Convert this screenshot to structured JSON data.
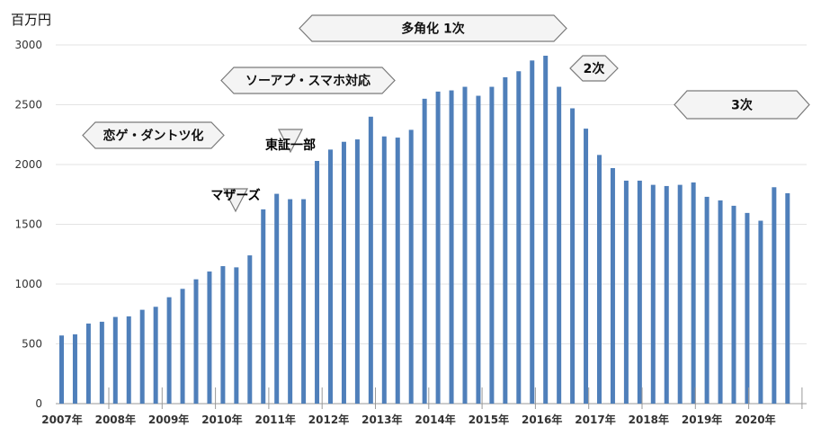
{
  "chart_data": {
    "type": "bar",
    "ylabel": "百万円",
    "ylim": [
      0,
      3000
    ],
    "yticks": [
      0,
      500,
      1000,
      1500,
      2000,
      2500,
      3000
    ],
    "grid": true,
    "bar_color": "#4f7fba",
    "year_labels": [
      "2007年",
      "2008年",
      "2009年",
      "2010年",
      "2011年",
      "2012年",
      "2013年",
      "2014年",
      "2015年",
      "2016年",
      "2017年",
      "2018年",
      "2019年",
      "2020年"
    ],
    "values": [
      570,
      580,
      670,
      685,
      725,
      730,
      785,
      810,
      890,
      960,
      1040,
      1105,
      1150,
      1140,
      1240,
      1625,
      1755,
      1710,
      1710,
      2030,
      2125,
      2190,
      2210,
      2400,
      2235,
      2225,
      2290,
      2550,
      2610,
      2620,
      2650,
      2575,
      2650,
      2730,
      2780,
      2870,
      2910,
      2650,
      2470,
      2300,
      2080,
      1970,
      1865,
      1865,
      1830,
      1820,
      1830,
      1850,
      1730,
      1700,
      1655,
      1595,
      1530,
      1810,
      1760
    ],
    "annotations": {
      "badges": [
        {
          "id": "diversification",
          "label": "多角化 1次"
        },
        {
          "id": "soap-smartphone",
          "label": "ソーアプ・スマホ対応"
        },
        {
          "id": "romance-game",
          "label": "恋ゲ・ダントツ化"
        },
        {
          "id": "phase2",
          "label": "2次"
        },
        {
          "id": "phase3",
          "label": "3次"
        }
      ],
      "markers": [
        {
          "id": "mothers",
          "label": "マザーズ"
        },
        {
          "id": "tse-first",
          "label": "東証一部"
        }
      ]
    }
  }
}
